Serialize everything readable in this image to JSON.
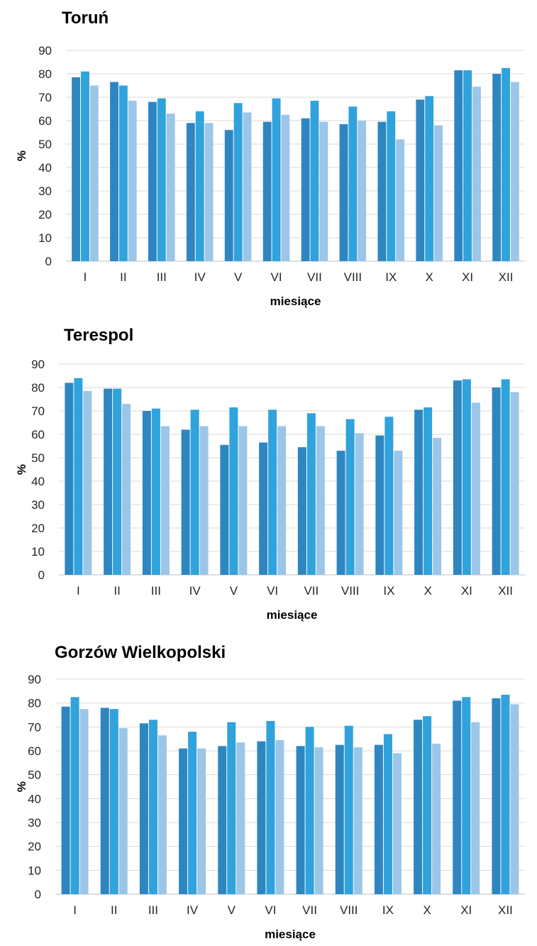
{
  "colors": {
    "series1": "#2e86c1",
    "series2": "#30a2dc",
    "series3": "#9bc6e8",
    "grid": "#d9d9d9"
  },
  "chart_data": [
    {
      "type": "bar",
      "title": "Toruń",
      "xlabel": "miesiące",
      "ylabel": "%",
      "ylim": [
        0,
        90
      ],
      "yticks": [
        "0",
        "10",
        "20",
        "30",
        "40",
        "50",
        "60",
        "70",
        "80",
        "90"
      ],
      "grid": true,
      "categories": [
        "I",
        "II",
        "III",
        "IV",
        "V",
        "VI",
        "VII",
        "VIII",
        "IX",
        "X",
        "XI",
        "XII"
      ],
      "series": [
        {
          "values": [
            78.5,
            76.5,
            68,
            59,
            56,
            59.5,
            61,
            58.5,
            59.5,
            69,
            81.5,
            80
          ]
        },
        {
          "values": [
            81,
            75,
            69.5,
            64,
            67.5,
            69.5,
            68.5,
            66,
            64,
            70.5,
            81.5,
            82.5
          ]
        },
        {
          "values": [
            75,
            68.5,
            63,
            59,
            63.5,
            62.5,
            59.5,
            60,
            52,
            58,
            74.5,
            76.5
          ]
        }
      ]
    },
    {
      "type": "bar",
      "title": "Terespol",
      "xlabel": "miesiące",
      "ylabel": "%",
      "ylim": [
        0,
        90
      ],
      "yticks": [
        "0",
        "10",
        "20",
        "30",
        "40",
        "50",
        "60",
        "70",
        "80",
        "90"
      ],
      "grid": true,
      "categories": [
        "I",
        "II",
        "III",
        "IV",
        "V",
        "VI",
        "VII",
        "VIII",
        "IX",
        "X",
        "XI",
        "XII"
      ],
      "series": [
        {
          "values": [
            82,
            79.5,
            70,
            62,
            55.5,
            56.5,
            54.5,
            53,
            59.5,
            70.5,
            83,
            80
          ]
        },
        {
          "values": [
            84,
            79.5,
            71,
            70.5,
            71.5,
            70.5,
            69,
            66.5,
            67.5,
            71.5,
            83.5,
            83.5
          ]
        },
        {
          "values": [
            78.5,
            73,
            63.5,
            63.5,
            63.5,
            63.5,
            63.5,
            60.5,
            53,
            58.5,
            73.5,
            78
          ]
        }
      ]
    },
    {
      "type": "bar",
      "title": "Gorzów Wielkopolski",
      "xlabel": "miesiące",
      "ylabel": "%",
      "ylim": [
        0,
        90
      ],
      "yticks": [
        "0",
        "10",
        "20",
        "30",
        "40",
        "50",
        "60",
        "70",
        "80",
        "90"
      ],
      "grid": true,
      "categories": [
        "I",
        "II",
        "III",
        "IV",
        "V",
        "VI",
        "VII",
        "VIII",
        "IX",
        "X",
        "XI",
        "XII"
      ],
      "series": [
        {
          "values": [
            78.5,
            78,
            71.5,
            61,
            62,
            64,
            62,
            62.5,
            62.5,
            73,
            81,
            82
          ]
        },
        {
          "values": [
            82.5,
            77.5,
            73,
            68,
            72,
            72.5,
            70,
            70.5,
            67,
            74.5,
            82.5,
            83.5
          ]
        },
        {
          "values": [
            77.5,
            69.5,
            66.5,
            61,
            63.5,
            64.5,
            61.5,
            61.5,
            59,
            63,
            72,
            79.5
          ]
        }
      ]
    }
  ]
}
